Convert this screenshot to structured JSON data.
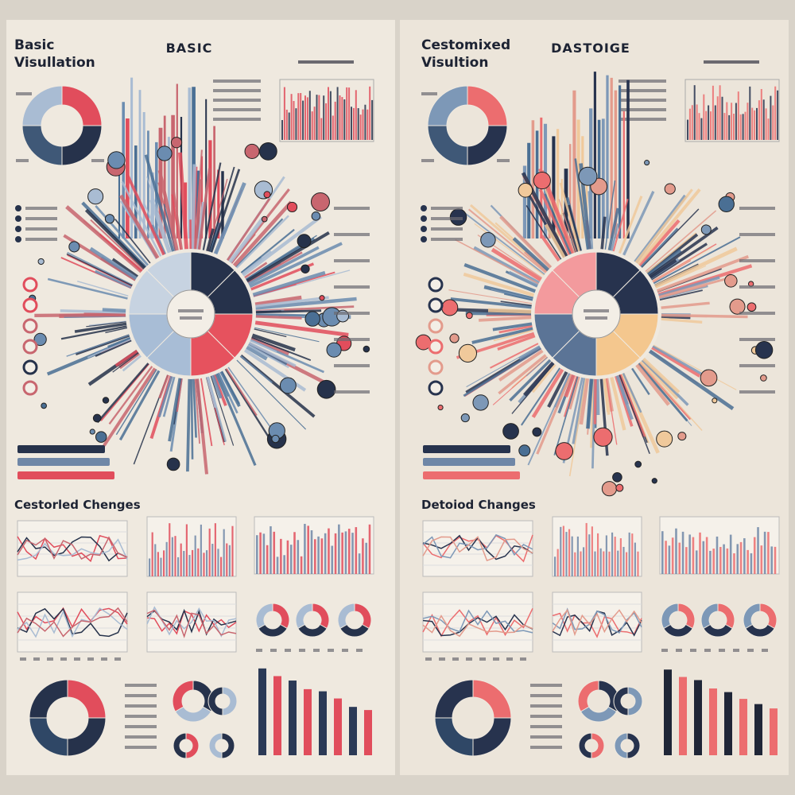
{
  "left": {
    "title_lines": [
      "Basic",
      "Visullation"
    ],
    "heading": "BASIC",
    "section": "Cestorled Chenges"
  },
  "right": {
    "title_lines": [
      "Cestomixed",
      "Visultion"
    ],
    "heading": "DASTOIGE",
    "section": "Detoiod Changes"
  }
}
